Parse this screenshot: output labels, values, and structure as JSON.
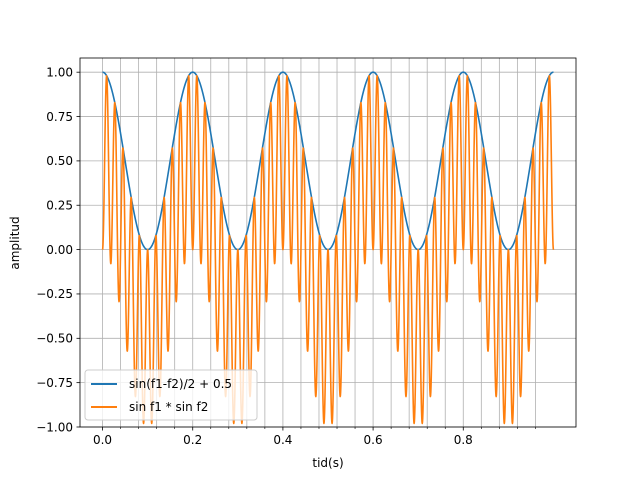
{
  "chart_data": {
    "type": "line",
    "title": "",
    "xlabel": "tid(s)",
    "ylabel": "amplitud",
    "xlim": [
      -0.05,
      1.05
    ],
    "ylim": [
      -1.0,
      1.08
    ],
    "x_ticks": [
      0.0,
      0.2,
      0.4,
      0.6,
      0.8
    ],
    "x_tick_labels": [
      "0.0",
      "0.2",
      "0.4",
      "0.6",
      "0.8"
    ],
    "x_minor_ticks": [
      0.04,
      0.08,
      0.12,
      0.16,
      0.24,
      0.28,
      0.32,
      0.36,
      0.44,
      0.48,
      0.52,
      0.56,
      0.64,
      0.68,
      0.72,
      0.76,
      0.84,
      0.88,
      0.92,
      0.96
    ],
    "y_ticks": [
      -1.0,
      -0.75,
      -0.5,
      -0.25,
      0.0,
      0.25,
      0.5,
      0.75,
      1.0
    ],
    "y_tick_labels": [
      "−1.00",
      "−0.75",
      "−0.50",
      "−0.25",
      "0.00",
      "0.25",
      "0.50",
      "0.75",
      "1.00"
    ],
    "grid": true,
    "legend_position": "lower-left",
    "x_range": [
      0.0,
      1.0
    ],
    "series": [
      {
        "name": "sin(f1-f2)/2 + 0.5",
        "color": "#1f77b4",
        "formula": "0.5 + 0.5*cos(2*pi*5*t)"
      },
      {
        "name": "sin f1 * sin f2",
        "color": "#ff7f0e",
        "formula": "sin(2*pi*25*t) * sin(2*pi*30*t)"
      }
    ]
  }
}
